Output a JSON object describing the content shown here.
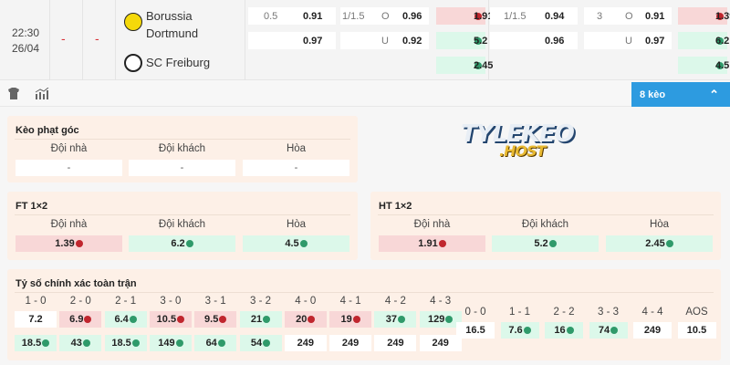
{
  "match": {
    "time": "22:30",
    "date": "26/04",
    "score_ft": "-",
    "score_ht": "-",
    "home": "Borussia Dortmund",
    "away": "SC Freiburg"
  },
  "odds": {
    "ft_hdp": {
      "line": "0.5",
      "home": "0.91",
      "away": "0.97"
    },
    "ft_ou": {
      "line": "1/1.5",
      "over_label": "O",
      "over": "0.96",
      "under_label": "U",
      "under": "0.92"
    },
    "ht_1x2": {
      "home": "1.91",
      "away": "5.2",
      "draw": "2.45"
    },
    "ht_hdp": {
      "line": "1/1.5",
      "home": "0.94",
      "away": "0.96"
    },
    "ht_ou": {
      "line": "3",
      "over_label": "O",
      "over": "0.91",
      "under_label": "U",
      "under": "0.97"
    },
    "ft_1x2": {
      "home": "1.39",
      "away": "6.2",
      "draw": "4.5"
    }
  },
  "more_button": "8 kèo",
  "headers": {
    "home": "Đội nhà",
    "away": "Đội khách",
    "draw": "Hòa"
  },
  "corner": {
    "title": "Kèo phạt góc",
    "home": "-",
    "away": "-",
    "draw": "-"
  },
  "ft": {
    "title": "FT 1×2",
    "home": "1.39",
    "away": "6.2",
    "draw": "4.5"
  },
  "ht": {
    "title": "HT 1×2",
    "home": "1.91",
    "away": "5.2",
    "draw": "2.45"
  },
  "watermark": "TYLEKEO .HOST",
  "correct_score": {
    "title": "Tỷ số chính xác toàn trận",
    "home_wins": [
      {
        "score": "1 - 0",
        "home": "7.2",
        "away": "18.5",
        "ht": "none",
        "at": "up"
      },
      {
        "score": "2 - 0",
        "home": "6.9",
        "away": "43",
        "ht": "dn",
        "at": "up"
      },
      {
        "score": "2 - 1",
        "home": "6.4",
        "away": "18.5",
        "ht": "up",
        "at": "up"
      },
      {
        "score": "3 - 0",
        "home": "10.5",
        "away": "149",
        "ht": "dn",
        "at": "up"
      },
      {
        "score": "3 - 1",
        "home": "9.5",
        "away": "64",
        "ht": "dn",
        "at": "up"
      },
      {
        "score": "3 - 2",
        "home": "21",
        "away": "54",
        "ht": "up",
        "at": "up"
      },
      {
        "score": "4 - 0",
        "home": "20",
        "away": "249",
        "ht": "dn",
        "at": "none"
      },
      {
        "score": "4 - 1",
        "home": "19",
        "away": "249",
        "ht": "dn",
        "at": "none"
      },
      {
        "score": "4 - 2",
        "home": "37",
        "away": "249",
        "ht": "up",
        "at": "none"
      },
      {
        "score": "4 - 3",
        "home": "129",
        "away": "249",
        "ht": "up",
        "at": "none"
      }
    ],
    "draws": [
      {
        "score": "0 - 0",
        "value": "16.5",
        "t": "none"
      },
      {
        "score": "1 - 1",
        "value": "7.6",
        "t": "up"
      },
      {
        "score": "2 - 2",
        "value": "16",
        "t": "up"
      },
      {
        "score": "3 - 3",
        "value": "74",
        "t": "up"
      },
      {
        "score": "4 - 4",
        "value": "249",
        "t": "none"
      },
      {
        "score": "AOS",
        "value": "10.5",
        "t": "none"
      }
    ]
  },
  "colors": {
    "accent": "#2d9be0",
    "up": "#2f9a6a",
    "down": "#c0262e",
    "panel": "#fdf0e7"
  }
}
